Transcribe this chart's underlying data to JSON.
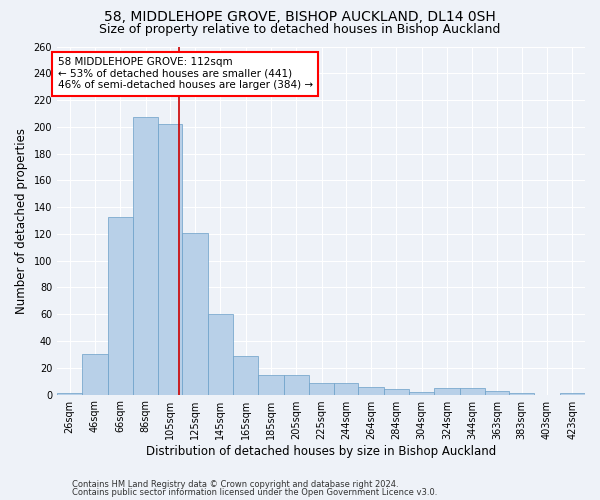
{
  "title": "58, MIDDLEHOPE GROVE, BISHOP AUCKLAND, DL14 0SH",
  "subtitle": "Size of property relative to detached houses in Bishop Auckland",
  "xlabel": "Distribution of detached houses by size in Bishop Auckland",
  "ylabel": "Number of detached properties",
  "footnote1": "Contains HM Land Registry data © Crown copyright and database right 2024.",
  "footnote2": "Contains public sector information licensed under the Open Government Licence v3.0.",
  "annotation_line1": "58 MIDDLEHOPE GROVE: 112sqm",
  "annotation_line2": "← 53% of detached houses are smaller (441)",
  "annotation_line3": "46% of semi-detached houses are larger (384) →",
  "bar_color": "#b8d0e8",
  "bar_edge_color": "#6a9fc8",
  "vline_color": "#cc0000",
  "vline_x": 112,
  "categories": [
    "26sqm",
    "46sqm",
    "66sqm",
    "86sqm",
    "105sqm",
    "125sqm",
    "145sqm",
    "165sqm",
    "185sqm",
    "205sqm",
    "225sqm",
    "244sqm",
    "264sqm",
    "284sqm",
    "304sqm",
    "324sqm",
    "344sqm",
    "363sqm",
    "383sqm",
    "403sqm",
    "423sqm"
  ],
  "bin_edges": [
    16,
    36,
    56,
    76,
    96,
    115,
    135,
    155,
    175,
    195,
    215,
    235,
    254,
    274,
    294,
    314,
    334,
    354,
    373,
    393,
    413,
    433
  ],
  "values": [
    1,
    30,
    133,
    207,
    202,
    121,
    60,
    29,
    15,
    15,
    9,
    9,
    6,
    4,
    2,
    5,
    5,
    3,
    1,
    0,
    1
  ],
  "ylim": [
    0,
    260
  ],
  "yticks": [
    0,
    20,
    40,
    60,
    80,
    100,
    120,
    140,
    160,
    180,
    200,
    220,
    240,
    260
  ],
  "background_color": "#eef2f8",
  "grid_color": "#ffffff",
  "title_fontsize": 10,
  "subtitle_fontsize": 9,
  "label_fontsize": 8.5,
  "tick_fontsize": 7,
  "annotation_fontsize": 7.5,
  "footnote_fontsize": 6
}
